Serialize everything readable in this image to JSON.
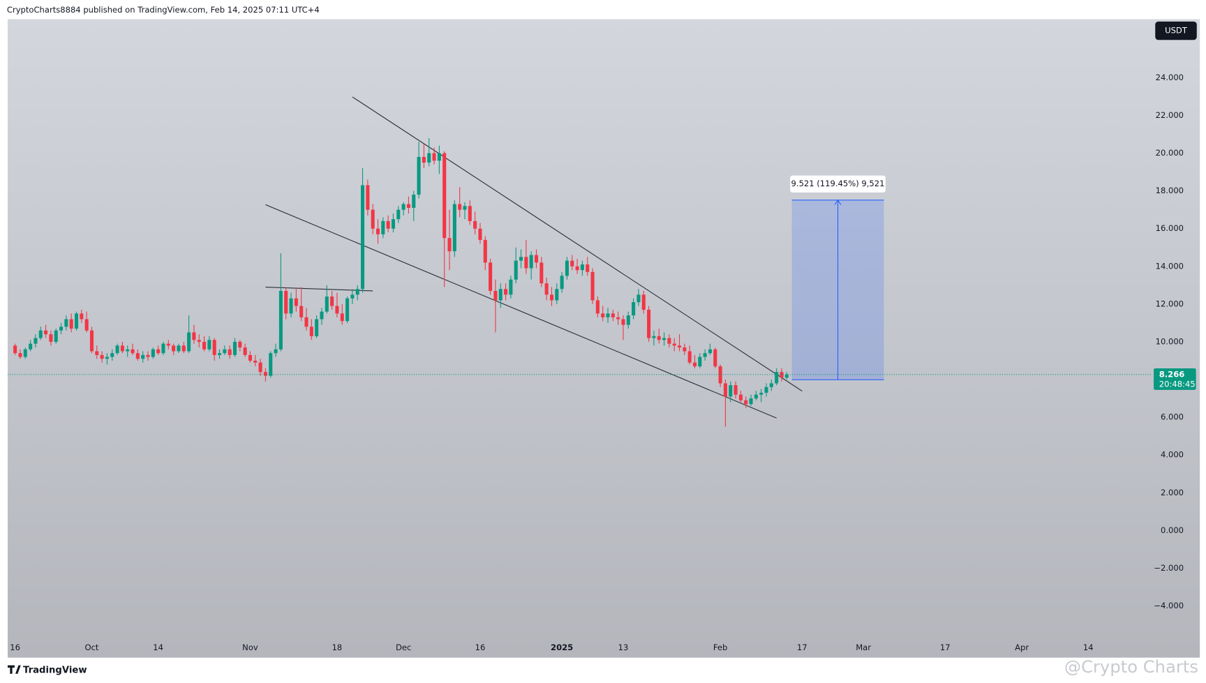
{
  "chart_data": {
    "type": "candlestick",
    "title": "CryptoCharts8884 published on TradingView.com, Feb 14, 2025 07:11 UTC+4",
    "currency": "USDT",
    "countdown": "20:48:45",
    "up_color": "#089981",
    "down_color": "#f23645",
    "line_color": "#2a2e39",
    "measure_color": "#2962ff",
    "grid": false,
    "xlim": [
      "2024-09-15",
      "2025-04-25"
    ],
    "ylim": [
      -6.7,
      27.1
    ],
    "xticks": [
      {
        "value": "2024-09-16",
        "label": "16"
      },
      {
        "value": "2024-10-01",
        "label": "Oct"
      },
      {
        "value": "2024-10-14",
        "label": "14"
      },
      {
        "value": "2024-11-01",
        "label": "Nov"
      },
      {
        "value": "2024-11-18",
        "label": "18"
      },
      {
        "value": "2024-12-01",
        "label": "Dec"
      },
      {
        "value": "2024-12-16",
        "label": "16"
      },
      {
        "value": "2025-01-01",
        "label": "2025"
      },
      {
        "value": "2025-01-13",
        "label": "13"
      },
      {
        "value": "2025-02-01",
        "label": "Feb"
      },
      {
        "value": "2025-02-17",
        "label": "17"
      },
      {
        "value": "2025-03-01",
        "label": "Mar"
      },
      {
        "value": "2025-03-17",
        "label": "17"
      },
      {
        "value": "2025-04-01",
        "label": "Apr"
      },
      {
        "value": "2025-04-14",
        "label": "14"
      }
    ],
    "yticks": [
      {
        "value": -4,
        "label": "−4.000"
      },
      {
        "value": -2,
        "label": "−2.000"
      },
      {
        "value": 0,
        "label": "0.000"
      },
      {
        "value": 2,
        "label": "2.000"
      },
      {
        "value": 4,
        "label": "4.000"
      },
      {
        "value": 6,
        "label": "6.000"
      },
      {
        "value": 8,
        "label": "8.000"
      },
      {
        "value": 10,
        "label": "10.000"
      },
      {
        "value": 12,
        "label": "12.000"
      },
      {
        "value": 14,
        "label": "14.000"
      },
      {
        "value": 16,
        "label": "16.000"
      },
      {
        "value": 18,
        "label": "18.000"
      },
      {
        "value": 20,
        "label": "20.000"
      },
      {
        "value": 22,
        "label": "22.000"
      },
      {
        "value": 24,
        "label": "24.000"
      }
    ],
    "x": [
      "2024-09-16",
      "2024-09-17",
      "2024-09-18",
      "2024-09-19",
      "2024-09-20",
      "2024-09-21",
      "2024-09-22",
      "2024-09-23",
      "2024-09-24",
      "2024-09-25",
      "2024-09-26",
      "2024-09-27",
      "2024-09-28",
      "2024-09-29",
      "2024-09-30",
      "2024-10-01",
      "2024-10-02",
      "2024-10-03",
      "2024-10-04",
      "2024-10-05",
      "2024-10-06",
      "2024-10-07",
      "2024-10-08",
      "2024-10-09",
      "2024-10-10",
      "2024-10-11",
      "2024-10-12",
      "2024-10-13",
      "2024-10-14",
      "2024-10-15",
      "2024-10-16",
      "2024-10-17",
      "2024-10-18",
      "2024-10-19",
      "2024-10-20",
      "2024-10-21",
      "2024-10-22",
      "2024-10-23",
      "2024-10-24",
      "2024-10-25",
      "2024-10-26",
      "2024-10-27",
      "2024-10-28",
      "2024-10-29",
      "2024-10-30",
      "2024-10-31",
      "2024-11-01",
      "2024-11-02",
      "2024-11-03",
      "2024-11-04",
      "2024-11-05",
      "2024-11-06",
      "2024-11-07",
      "2024-11-08",
      "2024-11-09",
      "2024-11-10",
      "2024-11-11",
      "2024-11-12",
      "2024-11-13",
      "2024-11-14",
      "2024-11-15",
      "2024-11-16",
      "2024-11-17",
      "2024-11-18",
      "2024-11-19",
      "2024-11-20",
      "2024-11-21",
      "2024-11-22",
      "2024-11-23",
      "2024-11-24",
      "2024-11-25",
      "2024-11-26",
      "2024-11-27",
      "2024-11-28",
      "2024-11-29",
      "2024-11-30",
      "2024-12-01",
      "2024-12-02",
      "2024-12-03",
      "2024-12-04",
      "2024-12-05",
      "2024-12-06",
      "2024-12-07",
      "2024-12-08",
      "2024-12-09",
      "2024-12-10",
      "2024-12-11",
      "2024-12-12",
      "2024-12-13",
      "2024-12-14",
      "2024-12-15",
      "2024-12-16",
      "2024-12-17",
      "2024-12-18",
      "2024-12-19",
      "2024-12-20",
      "2024-12-21",
      "2024-12-22",
      "2024-12-23",
      "2024-12-24",
      "2024-12-25",
      "2024-12-26",
      "2024-12-27",
      "2024-12-28",
      "2024-12-29",
      "2024-12-30",
      "2024-12-31",
      "2025-01-01",
      "2025-01-02",
      "2025-01-03",
      "2025-01-04",
      "2025-01-05",
      "2025-01-06",
      "2025-01-07",
      "2025-01-08",
      "2025-01-09",
      "2025-01-10",
      "2025-01-11",
      "2025-01-12",
      "2025-01-13",
      "2025-01-14",
      "2025-01-15",
      "2025-01-16",
      "2025-01-17",
      "2025-01-18",
      "2025-01-19",
      "2025-01-20",
      "2025-01-21",
      "2025-01-22",
      "2025-01-23",
      "2025-01-24",
      "2025-01-25",
      "2025-01-26",
      "2025-01-27",
      "2025-01-28",
      "2025-01-29",
      "2025-01-30",
      "2025-01-31",
      "2025-02-01",
      "2025-02-02",
      "2025-02-03",
      "2025-02-04",
      "2025-02-05",
      "2025-02-06",
      "2025-02-07",
      "2025-02-08",
      "2025-02-09",
      "2025-02-10",
      "2025-02-11",
      "2025-02-12",
      "2025-02-13",
      "2025-02-14"
    ],
    "open": [
      9.8,
      9.4,
      9.2,
      9.6,
      9.9,
      10.2,
      10.6,
      10.4,
      10.0,
      10.6,
      10.8,
      11.2,
      10.7,
      11.5,
      11.2,
      10.6,
      9.5,
      9.3,
      9.1,
      9.2,
      9.4,
      9.8,
      9.5,
      9.6,
      9.4,
      9.1,
      9.3,
      9.2,
      9.6,
      9.4,
      9.9,
      9.8,
      9.5,
      9.8,
      9.5,
      10.5,
      10.1,
      10.0,
      9.6,
      10.1,
      9.3,
      9.4,
      9.6,
      9.3,
      10.0,
      9.7,
      9.3,
      9.0,
      8.9,
      8.4,
      8.2,
      9.4,
      9.6,
      12.7,
      11.5,
      12.3,
      11.9,
      11.3,
      10.8,
      10.3,
      11.2,
      11.6,
      12.4,
      11.9,
      11.5,
      11.1,
      12.3,
      12.5,
      12.8,
      18.3,
      17.0,
      16.0,
      15.7,
      16.4,
      16.0,
      16.5,
      17.0,
      17.3,
      17.1,
      17.8,
      19.8,
      19.5,
      20.0,
      19.6,
      20.0,
      15.5,
      14.8,
      17.3,
      17.0,
      17.2,
      16.4,
      16.0,
      15.4,
      14.2,
      12.7,
      12.2,
      12.8,
      12.5,
      13.3,
      14.3,
      14.5,
      13.9,
      14.6,
      14.2,
      13.1,
      12.5,
      12.2,
      12.8,
      13.5,
      14.3,
      14.0,
      13.8,
      14.1,
      13.7,
      12.2,
      11.5,
      11.3,
      11.5,
      11.3,
      11.2,
      10.9,
      11.4,
      12.1,
      12.5,
      11.7,
      10.2,
      10.3,
      10.1,
      10.2,
      9.9,
      9.8,
      9.7,
      9.5,
      8.9,
      8.7,
      9.2,
      9.4,
      9.6,
      8.7,
      7.8,
      7.1,
      7.7,
      7.2,
      6.9,
      6.7,
      7.0,
      7.2,
      7.3,
      7.6,
      7.8,
      8.4,
      8.1
    ],
    "high": [
      9.9,
      9.6,
      9.7,
      10.1,
      10.4,
      10.8,
      10.9,
      10.6,
      10.7,
      11.0,
      11.4,
      11.5,
      11.6,
      11.7,
      11.6,
      10.8,
      9.8,
      9.5,
      9.4,
      9.6,
      9.9,
      10.0,
      9.8,
      9.9,
      9.6,
      9.5,
      9.5,
      9.7,
      9.8,
      10.0,
      10.1,
      9.9,
      9.9,
      10.0,
      11.4,
      10.9,
      10.4,
      10.3,
      10.3,
      10.2,
      9.6,
      9.8,
      9.8,
      10.2,
      10.1,
      9.9,
      9.5,
      9.3,
      9.1,
      8.6,
      9.5,
      9.9,
      14.7,
      12.9,
      12.6,
      12.8,
      12.9,
      11.8,
      11.2,
      11.4,
      11.8,
      13.0,
      12.7,
      12.6,
      12.0,
      12.4,
      12.8,
      13.0,
      19.2,
      18.6,
      17.3,
      16.5,
      16.6,
      16.7,
      16.8,
      17.2,
      17.4,
      17.7,
      18.0,
      20.6,
      20.5,
      20.8,
      20.3,
      20.4,
      20.1,
      17.0,
      17.5,
      18.2,
      17.4,
      17.5,
      16.9,
      16.3,
      15.6,
      14.4,
      13.3,
      13.1,
      13.1,
      13.5,
      15.0,
      14.9,
      15.4,
      14.8,
      14.9,
      14.5,
      13.4,
      12.9,
      13.1,
      13.7,
      14.5,
      14.6,
      14.4,
      14.3,
      14.5,
      13.9,
      12.4,
      11.9,
      11.8,
      11.7,
      11.6,
      11.4,
      11.6,
      12.3,
      12.8,
      12.7,
      11.9,
      10.6,
      10.7,
      10.5,
      10.4,
      10.2,
      10.4,
      9.9,
      9.8,
      9.3,
      9.4,
      9.6,
      9.9,
      9.7,
      8.8,
      8.0,
      7.9,
      7.9,
      7.4,
      7.1,
      7.2,
      7.4,
      7.5,
      7.8,
      8.0,
      8.6,
      8.6,
      8.4
    ],
    "low": [
      9.3,
      9.1,
      9.1,
      9.5,
      9.7,
      10.1,
      10.2,
      9.8,
      9.9,
      10.4,
      10.6,
      10.5,
      10.6,
      11.0,
      10.5,
      9.4,
      9.1,
      8.9,
      8.8,
      9.0,
      9.3,
      9.4,
      9.2,
      9.3,
      9.0,
      8.9,
      9.0,
      9.1,
      9.3,
      9.3,
      9.6,
      9.3,
      9.4,
      9.4,
      9.4,
      9.9,
      9.7,
      9.5,
      9.5,
      9.0,
      9.1,
      9.3,
      9.1,
      9.2,
      9.5,
      9.2,
      8.9,
      8.7,
      8.2,
      7.9,
      8.1,
      9.2,
      9.5,
      11.2,
      11.3,
      11.6,
      11.1,
      10.6,
      10.1,
      10.2,
      10.9,
      11.5,
      11.7,
      11.3,
      10.9,
      11.0,
      12.0,
      12.2,
      12.6,
      16.7,
      15.7,
      15.2,
      15.5,
      15.8,
      15.8,
      16.3,
      16.7,
      16.8,
      16.4,
      17.6,
      19.2,
      19.3,
      19.4,
      18.9,
      12.9,
      13.8,
      14.5,
      16.6,
      16.5,
      16.2,
      15.7,
      15.2,
      13.8,
      12.5,
      10.5,
      11.8,
      12.2,
      12.3,
      13.1,
      13.9,
      13.6,
      13.3,
      13.9,
      12.9,
      12.2,
      11.9,
      12.0,
      12.6,
      13.3,
      13.8,
      13.6,
      13.5,
      13.5,
      12.0,
      11.3,
      11.1,
      11.0,
      11.1,
      10.9,
      10.1,
      10.7,
      11.2,
      11.9,
      11.5,
      10.0,
      9.8,
      9.9,
      9.8,
      9.7,
      9.5,
      9.5,
      9.3,
      8.8,
      8.6,
      8.6,
      9.0,
      9.3,
      8.6,
      7.6,
      5.5,
      6.8,
      7.0,
      6.8,
      6.5,
      6.6,
      6.9,
      6.8,
      7.1,
      7.4,
      7.7,
      7.9,
      8.0
    ],
    "close": [
      9.4,
      9.2,
      9.6,
      9.9,
      10.2,
      10.6,
      10.4,
      10.0,
      10.6,
      10.8,
      11.2,
      10.7,
      11.5,
      11.2,
      10.6,
      9.5,
      9.3,
      9.1,
      9.2,
      9.4,
      9.8,
      9.5,
      9.6,
      9.4,
      9.1,
      9.3,
      9.2,
      9.6,
      9.4,
      9.9,
      9.8,
      9.5,
      9.8,
      9.5,
      10.5,
      10.1,
      10.0,
      9.6,
      10.1,
      9.3,
      9.4,
      9.6,
      9.3,
      10.0,
      9.7,
      9.3,
      9.0,
      8.9,
      8.4,
      8.2,
      9.4,
      9.6,
      12.7,
      11.5,
      12.3,
      11.9,
      11.3,
      10.8,
      10.3,
      11.2,
      11.6,
      12.4,
      11.9,
      11.5,
      11.1,
      12.3,
      12.5,
      12.8,
      18.3,
      17.0,
      16.0,
      15.7,
      16.4,
      16.0,
      16.5,
      17.0,
      17.3,
      17.1,
      17.8,
      19.8,
      19.5,
      20.0,
      19.6,
      20.0,
      15.5,
      14.8,
      17.3,
      17.0,
      17.2,
      16.4,
      16.0,
      15.4,
      14.2,
      12.7,
      12.2,
      12.8,
      12.5,
      13.3,
      14.3,
      14.5,
      13.9,
      14.6,
      14.2,
      13.1,
      12.5,
      12.2,
      12.8,
      13.5,
      14.3,
      14.0,
      13.8,
      14.1,
      13.7,
      12.2,
      11.5,
      11.3,
      11.5,
      11.3,
      11.2,
      10.9,
      11.4,
      12.1,
      12.5,
      11.7,
      10.2,
      10.3,
      10.1,
      10.2,
      9.9,
      9.8,
      9.7,
      9.5,
      8.9,
      8.7,
      9.2,
      9.4,
      9.6,
      8.7,
      7.8,
      7.1,
      7.7,
      7.2,
      6.9,
      6.7,
      7.0,
      7.2,
      7.3,
      7.6,
      7.8,
      8.4,
      8.1,
      8.266
    ],
    "lines": [
      {
        "x": [
          "2024-11-21",
          "2025-02-17"
        ],
        "y": [
          22.98,
          7.39
        ]
      },
      {
        "x": [
          "2024-11-04",
          "2025-02-12"
        ],
        "y": [
          17.27,
          5.96
        ]
      },
      {
        "x": [
          "2024-11-04",
          "2024-11-25"
        ],
        "y": [
          12.9,
          12.7
        ]
      }
    ],
    "measure": {
      "label": "9.521 (119.45%) 9,521",
      "x": [
        "2025-02-15",
        "2025-03-05"
      ],
      "y": [
        7.99,
        17.511
      ]
    }
  },
  "page": {
    "brand": "TradingView",
    "watermark": "@Crypto Charts"
  }
}
